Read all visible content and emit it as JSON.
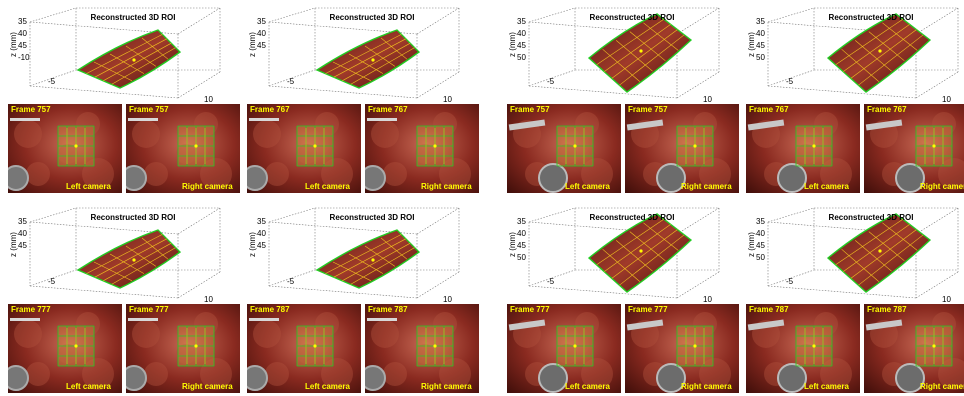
{
  "roi_title": "Reconstructed 3D ROI",
  "z_axis_label": "z (mm)",
  "left_camera_label": "Left camera",
  "right_camera_label": "Right camera",
  "colors": {
    "grid": "#f0c020",
    "outline": "#22cc22",
    "text_overlay": "#ffff00",
    "tissue": "#8a2a20"
  },
  "panels": [
    {
      "z_ticks": [
        "35",
        "40",
        "45",
        "-10"
      ],
      "x_tick_left": "-5",
      "x_tick_right": "10",
      "left_frame": "Frame 757",
      "right_frame": "Frame 757"
    },
    {
      "z_ticks": [
        "35",
        "40",
        "45"
      ],
      "x_tick_left": "-5",
      "x_tick_right": "10",
      "left_frame": "Frame 767",
      "right_frame": "Frame 767"
    },
    {
      "z_ticks": [
        "35",
        "40",
        "45",
        "50"
      ],
      "x_tick_left": "-5",
      "x_tick_right": "10",
      "left_frame": "Frame 757",
      "right_frame": "Frame 757"
    },
    {
      "z_ticks": [
        "35",
        "40",
        "45",
        "50"
      ],
      "x_tick_left": "-5",
      "x_tick_right": "10",
      "left_frame": "Frame 767",
      "right_frame": "Frame 767"
    },
    {
      "z_ticks": [
        "35",
        "40",
        "45"
      ],
      "x_tick_left": "-5",
      "x_tick_right": "10",
      "left_frame": "Frame 777",
      "right_frame": "Frame 777"
    },
    {
      "z_ticks": [
        "35",
        "40",
        "45"
      ],
      "x_tick_left": "-5",
      "x_tick_right": "10",
      "left_frame": "Frame 787",
      "right_frame": "Frame 787"
    },
    {
      "z_ticks": [
        "35",
        "40",
        "45",
        "50"
      ],
      "x_tick_left": "-5",
      "x_tick_right": "10",
      "left_frame": "Frame 777",
      "right_frame": "Frame 777"
    },
    {
      "z_ticks": [
        "35",
        "40",
        "45",
        "50"
      ],
      "x_tick_left": "-5",
      "x_tick_right": "10",
      "left_frame": "Frame 787",
      "right_frame": "Frame 787"
    }
  ]
}
